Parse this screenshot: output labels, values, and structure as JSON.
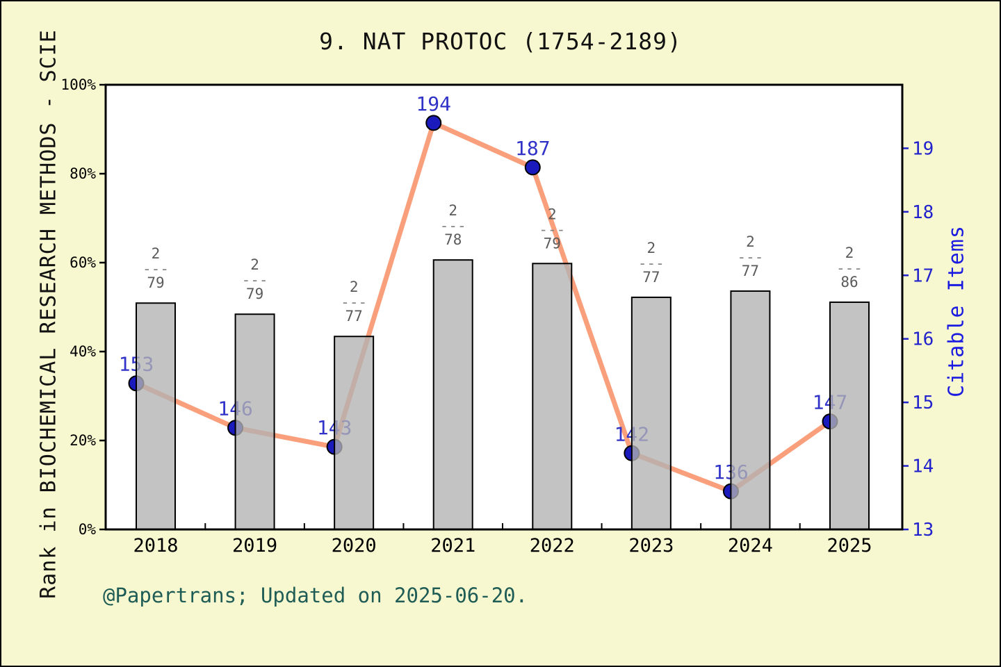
{
  "window": {
    "background": "#f7f8d0",
    "border_color": "#000000"
  },
  "header": {
    "title": "9. NAT PROTOC (1754-2189)"
  },
  "footer": {
    "credit": "@Papertrans; Updated on 2025-06-20."
  },
  "chart_data": {
    "type": "bar+line",
    "categories": [
      "2018",
      "2019",
      "2020",
      "2021",
      "2022",
      "2023",
      "2024",
      "2025"
    ],
    "series": [
      {
        "name": "rank-bars",
        "type": "bar",
        "axis": "left",
        "unit": "percent of left axis",
        "bar_heights_pct": [
          50.9,
          48.4,
          43.4,
          60.6,
          59.8,
          52.2,
          53.6,
          51.1
        ],
        "fractions": [
          {
            "numerator": "2",
            "denominator": "79"
          },
          {
            "numerator": "2",
            "denominator": "79"
          },
          {
            "numerator": "2",
            "denominator": "77"
          },
          {
            "numerator": "2",
            "denominator": "78"
          },
          {
            "numerator": "2",
            "denominator": "79"
          },
          {
            "numerator": "2",
            "denominator": "77"
          },
          {
            "numerator": "2",
            "denominator": "77"
          },
          {
            "numerator": "2",
            "denominator": "86"
          }
        ]
      },
      {
        "name": "Citable Items",
        "type": "line",
        "axis": "right",
        "values": [
          153,
          146,
          143,
          194,
          187,
          142,
          136,
          147
        ],
        "point_labels": [
          "153",
          "146",
          "143",
          "194",
          "187",
          "142",
          "136",
          "147"
        ],
        "plotted_scale": "value/10 on right axis"
      }
    ],
    "left_axis": {
      "label": "Rank in BIOCHEMICAL RESEARCH METHODS - SCIE",
      "tick_labels": [
        "0%",
        "20%",
        "40%",
        "60%",
        "80%",
        "100%"
      ],
      "tick_values": [
        0,
        20,
        40,
        60,
        80,
        100
      ],
      "range": [
        0,
        100
      ]
    },
    "right_axis": {
      "label": "Citable Items",
      "tick_labels": [
        "13",
        "14",
        "15",
        "16",
        "17",
        "18",
        "19"
      ],
      "tick_values": [
        13,
        14,
        15,
        16,
        17,
        18,
        19
      ],
      "range": [
        13,
        20
      ]
    },
    "fraction_dash": "---",
    "grid": false,
    "legend": "none",
    "colors": {
      "line": "#fa9f7b",
      "marker_fill": "#1a1abd",
      "marker_edge": "#000000",
      "point_label": "#3032c8",
      "bar_fill": "#b2b2b2",
      "bar_edge": "#000000",
      "fraction_text": "#5a5a5a",
      "fraction_dash": "#848484",
      "left_tick_text": "#000000",
      "right_tick_text": "#2222cc",
      "axis_frame": "#000000",
      "plot_background": "#ffffff"
    }
  }
}
